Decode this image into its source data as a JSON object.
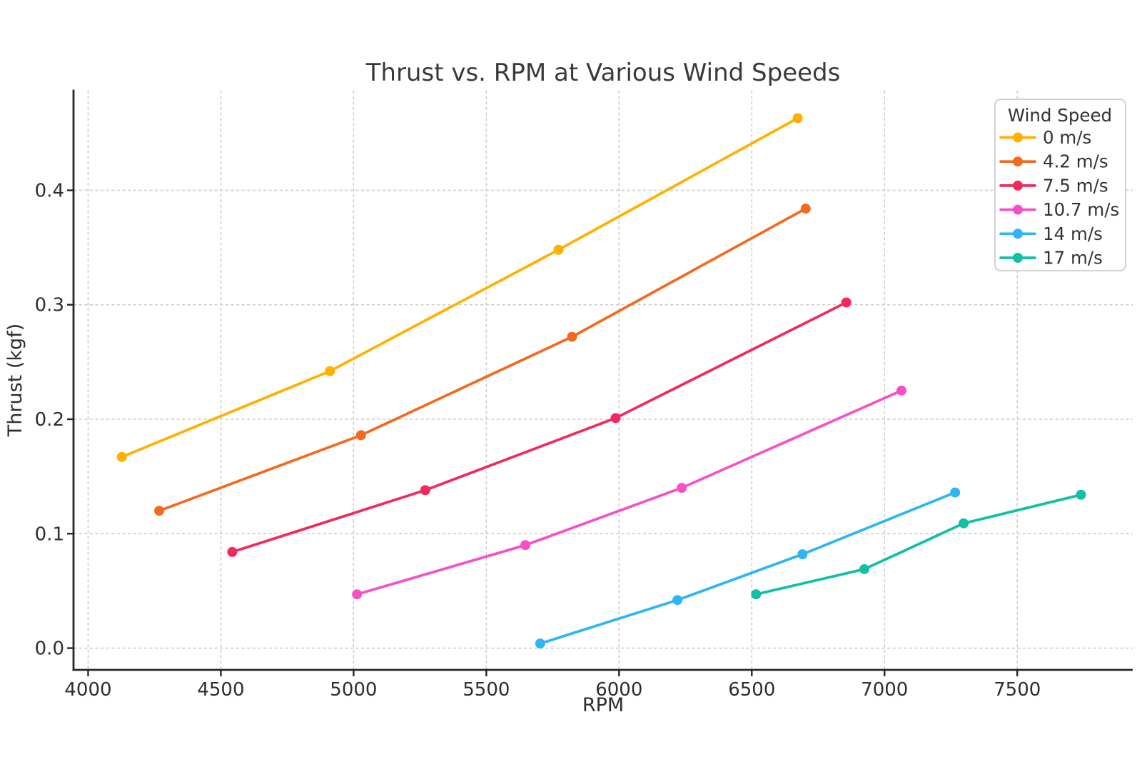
{
  "figure": {
    "background": "#ffffff"
  },
  "chart_data": {
    "type": "line",
    "title": "Thrust vs. RPM at Various Wind Speeds",
    "xlabel": "RPM",
    "ylabel": "Thrust (kgf)",
    "xlim": [
      3945,
      7935
    ],
    "ylim": [
      -0.019,
      0.487
    ],
    "x_ticks": [
      4000,
      4500,
      5000,
      5500,
      6000,
      6500,
      7000,
      7500
    ],
    "x_tick_labels": [
      "4000",
      "4500",
      "5000",
      "5500",
      "6000",
      "6500",
      "7000",
      "7500"
    ],
    "y_ticks": [
      0.0,
      0.1,
      0.2,
      0.3,
      0.4
    ],
    "y_tick_labels": [
      "0.0",
      "0.1",
      "0.2",
      "0.3",
      "0.4"
    ],
    "grid": true,
    "grid_style": "dashed",
    "grid_color": "#cdcdcd",
    "spine_color": "#262626",
    "legend": {
      "title": "Wind Speed",
      "position": "upper right"
    },
    "series": [
      {
        "name": "0 m/s",
        "color": "#FFB000",
        "x": [
          4127,
          4911,
          5772,
          6673
        ],
        "y": [
          0.167,
          0.242,
          0.348,
          0.463
        ]
      },
      {
        "name": "4.2 m/s",
        "color": "#F3691E",
        "x": [
          4268,
          5028,
          5823,
          6703
        ],
        "y": [
          0.12,
          0.186,
          0.272,
          0.384
        ]
      },
      {
        "name": "7.5 m/s",
        "color": "#EF2B5D",
        "x": [
          4543,
          5270,
          5987,
          6856
        ],
        "y": [
          0.084,
          0.138,
          0.201,
          0.302
        ]
      },
      {
        "name": "10.7 m/s",
        "color": "#F650C8",
        "x": [
          5013,
          5647,
          6236,
          7064
        ],
        "y": [
          0.047,
          0.09,
          0.14,
          0.225
        ]
      },
      {
        "name": "14 m/s",
        "color": "#2EB5F2",
        "x": [
          5703,
          6220,
          6691,
          7266
        ],
        "y": [
          0.004,
          0.042,
          0.082,
          0.136
        ]
      },
      {
        "name": "17 m/s",
        "color": "#10BFA4",
        "x": [
          6516,
          6924,
          7298,
          7740
        ],
        "y": [
          0.047,
          0.069,
          0.109,
          0.134
        ]
      }
    ]
  }
}
